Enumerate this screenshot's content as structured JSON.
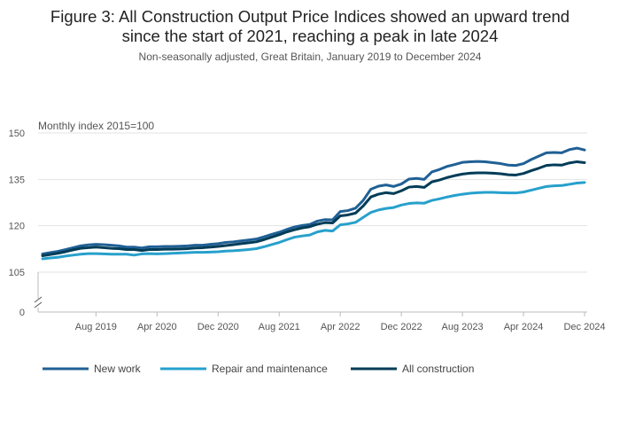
{
  "title_line1": "Figure 3: All Construction Output Price Indices showed an upward trend",
  "title_line2": "since the start of 2021, reaching a peak in late 2024",
  "subtitle": "Non-seasonally adjusted, Great Britain, January 2019 to December 2024",
  "chart_data": {
    "type": "line",
    "ylabel": "Monthly index 2015=100",
    "y_ticks": [
      0,
      105,
      120,
      135,
      150
    ],
    "y_break": [
      0,
      100
    ],
    "ylim": [
      100,
      150
    ],
    "x_tick_labels": [
      "Aug 2019",
      "Apr 2020",
      "Dec 2020",
      "Aug 2021",
      "Apr 2022",
      "Dec 2022",
      "Aug 2023",
      "Apr 2024",
      "Dec 2024"
    ],
    "x_tick_index": [
      7,
      15,
      23,
      31,
      39,
      47,
      55,
      63,
      71
    ],
    "grid": true,
    "legend_position": "bottom-left",
    "series": [
      {
        "name": "New work",
        "color": "#206095",
        "values": [
          110.9,
          111.3,
          111.7,
          112.3,
          112.9,
          113.5,
          113.8,
          114.0,
          113.9,
          113.7,
          113.5,
          113.1,
          113.1,
          112.8,
          113.2,
          113.2,
          113.3,
          113.3,
          113.4,
          113.5,
          113.7,
          113.7,
          114.0,
          114.2,
          114.6,
          114.8,
          115.1,
          115.4,
          115.7,
          116.4,
          117.2,
          117.9,
          118.8,
          119.6,
          120.1,
          120.4,
          121.5,
          122.0,
          121.9,
          124.6,
          124.9,
          125.7,
          128.2,
          131.8,
          132.8,
          133.2,
          132.7,
          133.5,
          135.1,
          135.3,
          135.0,
          137.4,
          138.2,
          139.2,
          139.8,
          140.5,
          140.7,
          140.8,
          140.7,
          140.4,
          140.1,
          139.6,
          139.5,
          140.1,
          141.4,
          142.5,
          143.6,
          143.7,
          143.6,
          144.6,
          145.1,
          144.5
        ]
      },
      {
        "name": "Repair and maintenance",
        "color": "#27a0cc",
        "values": [
          109.3,
          109.6,
          109.8,
          110.2,
          110.5,
          110.8,
          111.0,
          111.0,
          110.9,
          110.8,
          110.8,
          110.8,
          110.5,
          110.9,
          111.0,
          110.9,
          111.0,
          111.1,
          111.2,
          111.3,
          111.4,
          111.4,
          111.5,
          111.6,
          111.8,
          111.9,
          112.1,
          112.3,
          112.6,
          113.2,
          113.9,
          114.6,
          115.5,
          116.3,
          116.7,
          117.0,
          118.0,
          118.5,
          118.3,
          120.3,
          120.6,
          121.1,
          122.7,
          124.3,
          125.1,
          125.6,
          125.9,
          126.7,
          127.2,
          127.4,
          127.3,
          128.2,
          128.7,
          129.3,
          129.8,
          130.2,
          130.5,
          130.7,
          130.8,
          130.8,
          130.7,
          130.6,
          130.6,
          130.9,
          131.5,
          132.1,
          132.7,
          132.9,
          133.0,
          133.4,
          133.8,
          134.0
        ]
      },
      {
        "name": "All construction",
        "color": "#003c57",
        "values": [
          110.3,
          110.7,
          111.1,
          111.6,
          112.2,
          112.7,
          112.9,
          113.1,
          112.9,
          112.7,
          112.6,
          112.3,
          112.3,
          112.0,
          112.3,
          112.3,
          112.4,
          112.4,
          112.5,
          112.6,
          112.8,
          112.9,
          113.1,
          113.3,
          113.6,
          113.9,
          114.2,
          114.5,
          114.8,
          115.5,
          116.3,
          117.1,
          118.0,
          118.7,
          119.3,
          119.7,
          120.5,
          121.0,
          120.9,
          123.2,
          123.5,
          124.1,
          126.4,
          129.3,
          130.2,
          130.7,
          130.4,
          131.3,
          132.5,
          132.7,
          132.4,
          134.2,
          134.8,
          135.6,
          136.2,
          136.7,
          137.0,
          137.1,
          137.1,
          137.0,
          136.8,
          136.5,
          136.4,
          136.9,
          137.8,
          138.6,
          139.5,
          139.7,
          139.6,
          140.3,
          140.7,
          140.4
        ]
      }
    ]
  }
}
